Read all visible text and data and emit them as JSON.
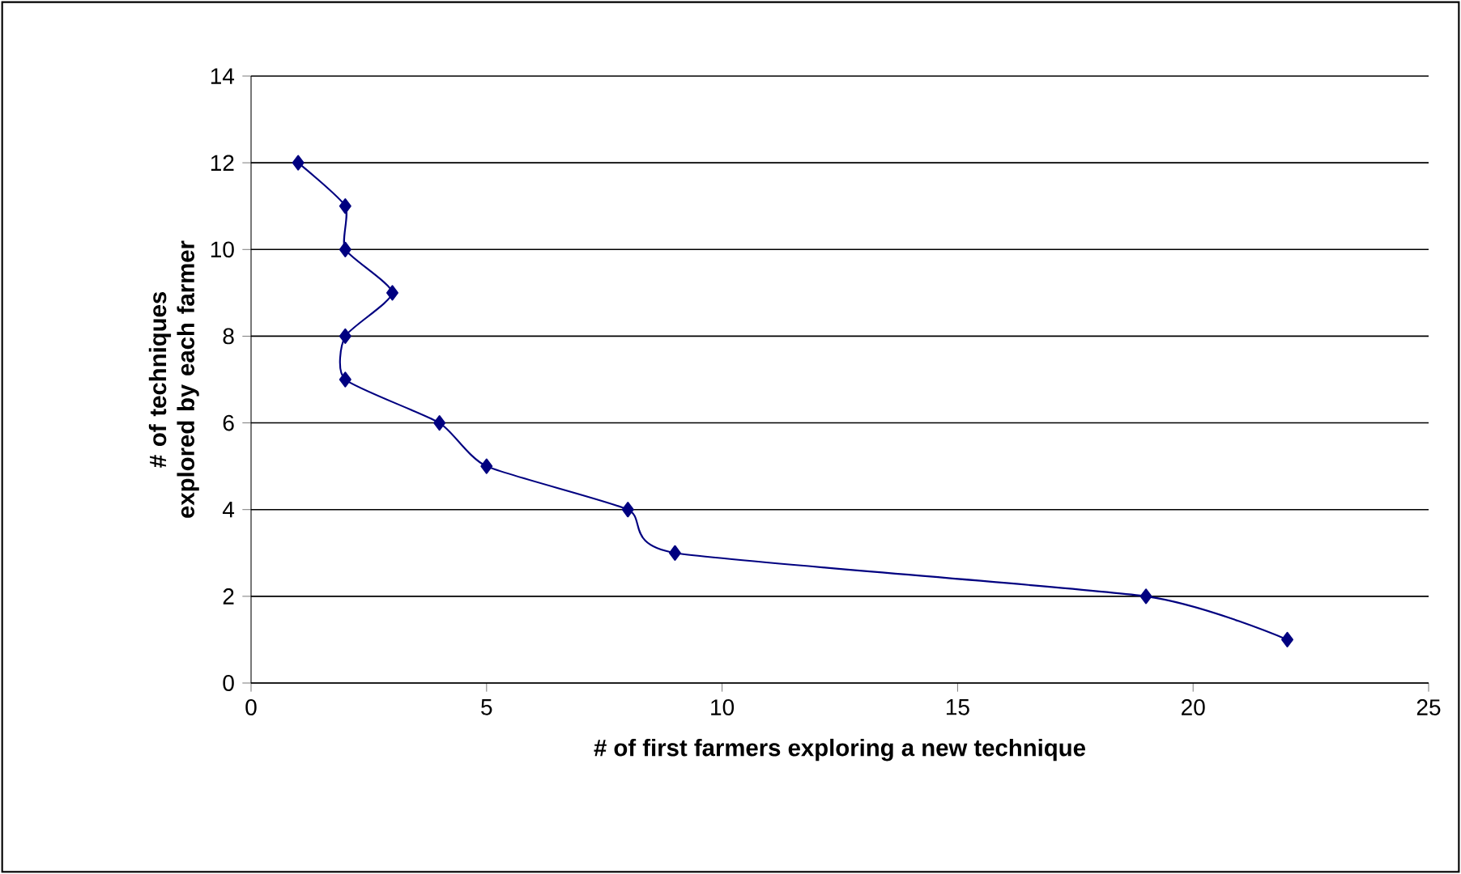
{
  "chart_data": {
    "type": "line",
    "xlabel": "# of first farmers exploring a new technique",
    "ylabel": "# of techniques explored by each farmer",
    "x": [
      1,
      2,
      2,
      3,
      2,
      2,
      4,
      5,
      8,
      9,
      19,
      22
    ],
    "series": [
      {
        "color": "#000080",
        "values": [
          12,
          11,
          10,
          9,
          8,
          7,
          6,
          5,
          4,
          3,
          2,
          1
        ]
      }
    ],
    "xlim": [
      0,
      25
    ],
    "ylim": [
      0,
      14
    ],
    "xticks": [
      0,
      5,
      10,
      15,
      20,
      25
    ],
    "yticks": [
      0,
      2,
      4,
      6,
      8,
      10,
      12,
      14
    ],
    "grid": "y",
    "marker": "diamond",
    "line_style": "solid"
  }
}
